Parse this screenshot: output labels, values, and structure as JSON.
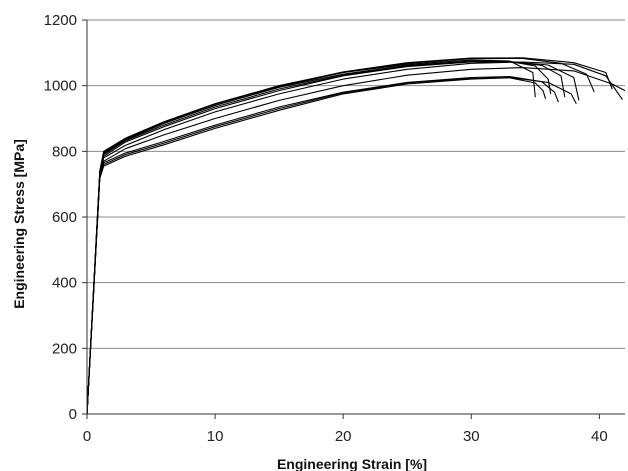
{
  "chart_data": {
    "type": "line",
    "title": "",
    "xlabel": "Engineering Strain [%]",
    "ylabel": "Engineering Stress [MPa]",
    "xlim": [
      0,
      42
    ],
    "ylim": [
      0,
      1200
    ],
    "x_ticks": [
      0,
      10,
      20,
      30,
      40
    ],
    "y_ticks": [
      0,
      200,
      400,
      600,
      800,
      1000,
      1200
    ],
    "grid": "horizontal",
    "legend": "none",
    "line_color": "#000000",
    "series": [
      {
        "x": [
          0,
          1.0,
          1.3,
          3,
          6,
          10,
          15,
          20,
          25,
          30,
          33,
          34.8,
          35.0
        ],
        "y": [
          0,
          740,
          800,
          840,
          890,
          945,
          1000,
          1040,
          1065,
          1078,
          1075,
          1040,
          965
        ]
      },
      {
        "x": [
          0,
          1.0,
          1.3,
          3,
          6,
          10,
          15,
          20,
          25,
          30,
          33,
          35,
          36.0,
          36.2
        ],
        "y": [
          0,
          735,
          795,
          835,
          885,
          940,
          995,
          1035,
          1062,
          1075,
          1074,
          1060,
          1020,
          975
        ]
      },
      {
        "x": [
          0,
          1.0,
          1.3,
          3,
          6,
          10,
          15,
          20,
          25,
          30,
          33,
          35.5,
          37,
          37.3
        ],
        "y": [
          0,
          730,
          790,
          832,
          880,
          935,
          990,
          1032,
          1060,
          1073,
          1072,
          1062,
          1030,
          965
        ]
      },
      {
        "x": [
          0,
          1.0,
          1.3,
          3,
          6,
          10,
          15,
          20,
          25,
          30,
          33,
          36,
          38,
          38.4
        ],
        "y": [
          0,
          728,
          785,
          828,
          875,
          930,
          985,
          1030,
          1058,
          1072,
          1073,
          1063,
          1025,
          955
        ]
      },
      {
        "x": [
          0,
          1.0,
          1.3,
          3,
          6,
          10,
          15,
          20,
          25,
          30,
          34,
          37,
          39,
          39.6
        ],
        "y": [
          0,
          735,
          792,
          835,
          885,
          940,
          997,
          1040,
          1068,
          1082,
          1083,
          1068,
          1035,
          980
        ]
      },
      {
        "x": [
          0,
          1.0,
          1.3,
          3,
          6,
          10,
          15,
          20,
          25,
          30,
          34,
          38,
          40.5,
          41
        ],
        "y": [
          0,
          738,
          798,
          838,
          888,
          944,
          1000,
          1042,
          1070,
          1084,
          1085,
          1070,
          1040,
          990
        ]
      },
      {
        "x": [
          0,
          1.0,
          1.3,
          3,
          6,
          10,
          15,
          20,
          25,
          30,
          34,
          38,
          40.5,
          41.8
        ],
        "y": [
          0,
          726,
          780,
          818,
          866,
          920,
          975,
          1020,
          1050,
          1068,
          1072,
          1065,
          1030,
          958
        ]
      },
      {
        "x": [
          0,
          1.0,
          1.3,
          3,
          6,
          10,
          15,
          20,
          25,
          30,
          33,
          35.5,
          36.5,
          36.8
        ],
        "y": [
          0,
          722,
          765,
          795,
          830,
          880,
          935,
          980,
          1010,
          1025,
          1028,
          1012,
          980,
          950
        ]
      },
      {
        "x": [
          0,
          1.0,
          1.3,
          3,
          6,
          10,
          15,
          20,
          25,
          30,
          33,
          36,
          37.8,
          38.2
        ],
        "y": [
          0,
          720,
          760,
          790,
          825,
          875,
          930,
          978,
          1008,
          1022,
          1025,
          1010,
          975,
          945
        ]
      },
      {
        "x": [
          0,
          1.0,
          1.3,
          3,
          6,
          10,
          15,
          20,
          25,
          30,
          33,
          35,
          35.6,
          35.8
        ],
        "y": [
          0,
          718,
          755,
          785,
          820,
          870,
          925,
          975,
          1005,
          1020,
          1024,
          1008,
          985,
          960
        ]
      },
      {
        "x": [
          0,
          1.0,
          1.3,
          3,
          6,
          10,
          15,
          20,
          25,
          30,
          34,
          38,
          41,
          42
        ],
        "y": [
          0,
          725,
          770,
          808,
          850,
          900,
          955,
          1000,
          1032,
          1050,
          1055,
          1045,
          1005,
          985
        ]
      }
    ]
  }
}
